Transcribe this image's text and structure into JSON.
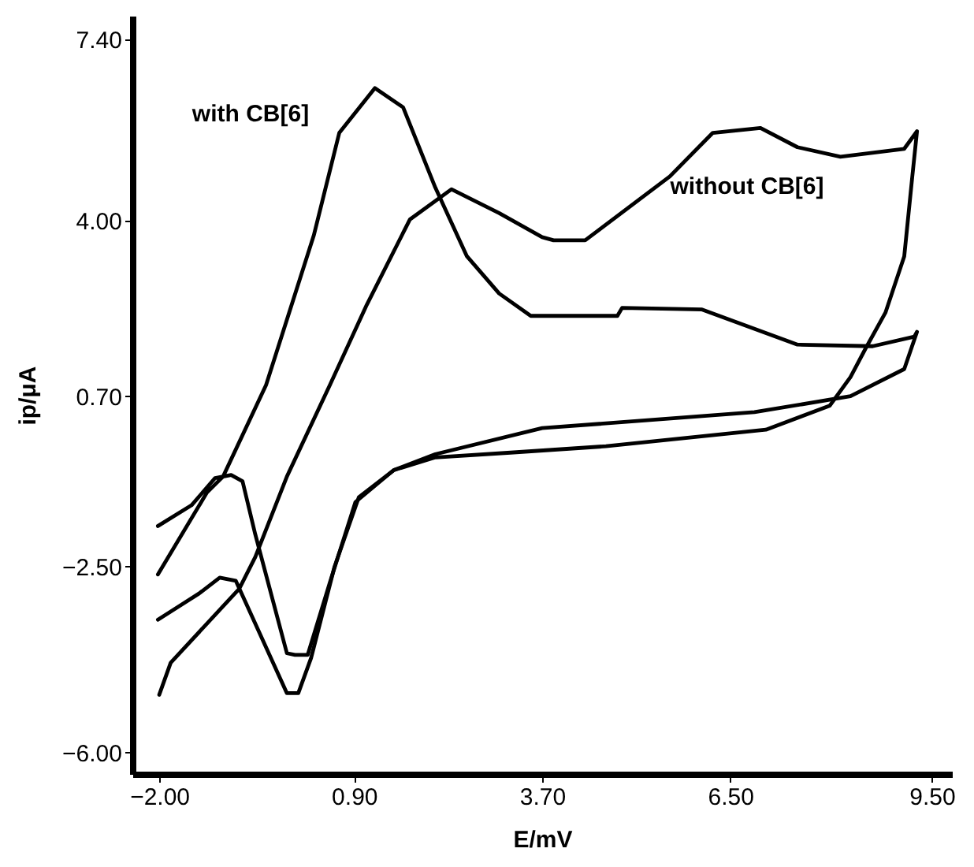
{
  "chart_data": {
    "type": "line",
    "xlabel": "E/mV",
    "ylabel": "ip/μA",
    "xlim": [
      -2.4,
      9.8
    ],
    "ylim": [
      -6.4,
      7.85
    ],
    "xticks": [
      {
        "value": -2.0,
        "label": "−2.00"
      },
      {
        "value": 0.9,
        "label": "0.90"
      },
      {
        "value": 3.7,
        "label": "3.70"
      },
      {
        "value": 6.5,
        "label": "6.50"
      },
      {
        "value": 9.5,
        "label": "9.50"
      }
    ],
    "yticks": [
      {
        "value": 7.4,
        "label": "7.40"
      },
      {
        "value": 4.0,
        "label": "4.00"
      },
      {
        "value": 0.7,
        "label": "0.70"
      },
      {
        "value": -2.5,
        "label": "−2.50"
      },
      {
        "value": -6.0,
        "label": "−6.00"
      }
    ],
    "grid": false,
    "marker": "none",
    "line_style": "solid",
    "series": [
      {
        "color": "#000000",
        "x": [
          -2.02,
          -1.29,
          -1.05,
          -0.41,
          0.3,
          0.68,
          1.21,
          1.63,
          2.11,
          2.58,
          3.06,
          3.53,
          4.82,
          4.89,
          6.08,
          7.5,
          8.62,
          9.24,
          9.28,
          9.09,
          8.29,
          6.86,
          3.7,
          2.11,
          1.49,
          0.92,
          0.54,
          0.21,
          0.02,
          -0.1,
          -0.57,
          -0.76,
          -0.93,
          -1.17,
          -1.52,
          -2.02
        ],
        "values": [
          -2.65,
          -1.11,
          -0.81,
          0.91,
          3.72,
          5.65,
          6.49,
          6.13,
          4.62,
          3.33,
          2.63,
          2.21,
          2.21,
          2.36,
          2.33,
          1.67,
          1.64,
          1.82,
          1.91,
          1.21,
          0.7,
          0.4,
          0.1,
          -0.39,
          -0.69,
          -1.29,
          -2.8,
          -4.16,
          -4.16,
          -4.13,
          -1.9,
          -0.9,
          -0.78,
          -0.84,
          -1.35,
          -1.74
        ]
      },
      {
        "color": "#000000",
        "x": [
          -2.0,
          -1.83,
          -0.81,
          -0.57,
          -0.1,
          0.54,
          1.09,
          1.73,
          2.35,
          3.06,
          3.7,
          3.87,
          4.34,
          5.6,
          6.24,
          6.95,
          7.5,
          8.14,
          9.09,
          9.28,
          9.21,
          9.09,
          8.81,
          8.52,
          8.29,
          7.98,
          7.03,
          4.65,
          3.23,
          2.11,
          1.49,
          0.97,
          0.61,
          0.26,
          0.07,
          -0.1,
          -0.86,
          -1.1,
          -1.41,
          -2.02
        ],
        "values": [
          -4.91,
          -4.31,
          -2.92,
          -2.32,
          -0.81,
          0.91,
          2.42,
          4.02,
          4.59,
          4.14,
          3.69,
          3.63,
          3.63,
          4.83,
          5.65,
          5.74,
          5.38,
          5.2,
          5.35,
          5.68,
          4.83,
          3.33,
          2.27,
          1.61,
          1.06,
          0.52,
          0.07,
          -0.24,
          -0.36,
          -0.45,
          -0.69,
          -1.2,
          -2.5,
          -4.22,
          -4.88,
          -4.88,
          -2.77,
          -2.71,
          -3.01,
          -3.5
        ]
      }
    ],
    "annotations": [
      "with CB[6]",
      "without CB[6]"
    ]
  }
}
